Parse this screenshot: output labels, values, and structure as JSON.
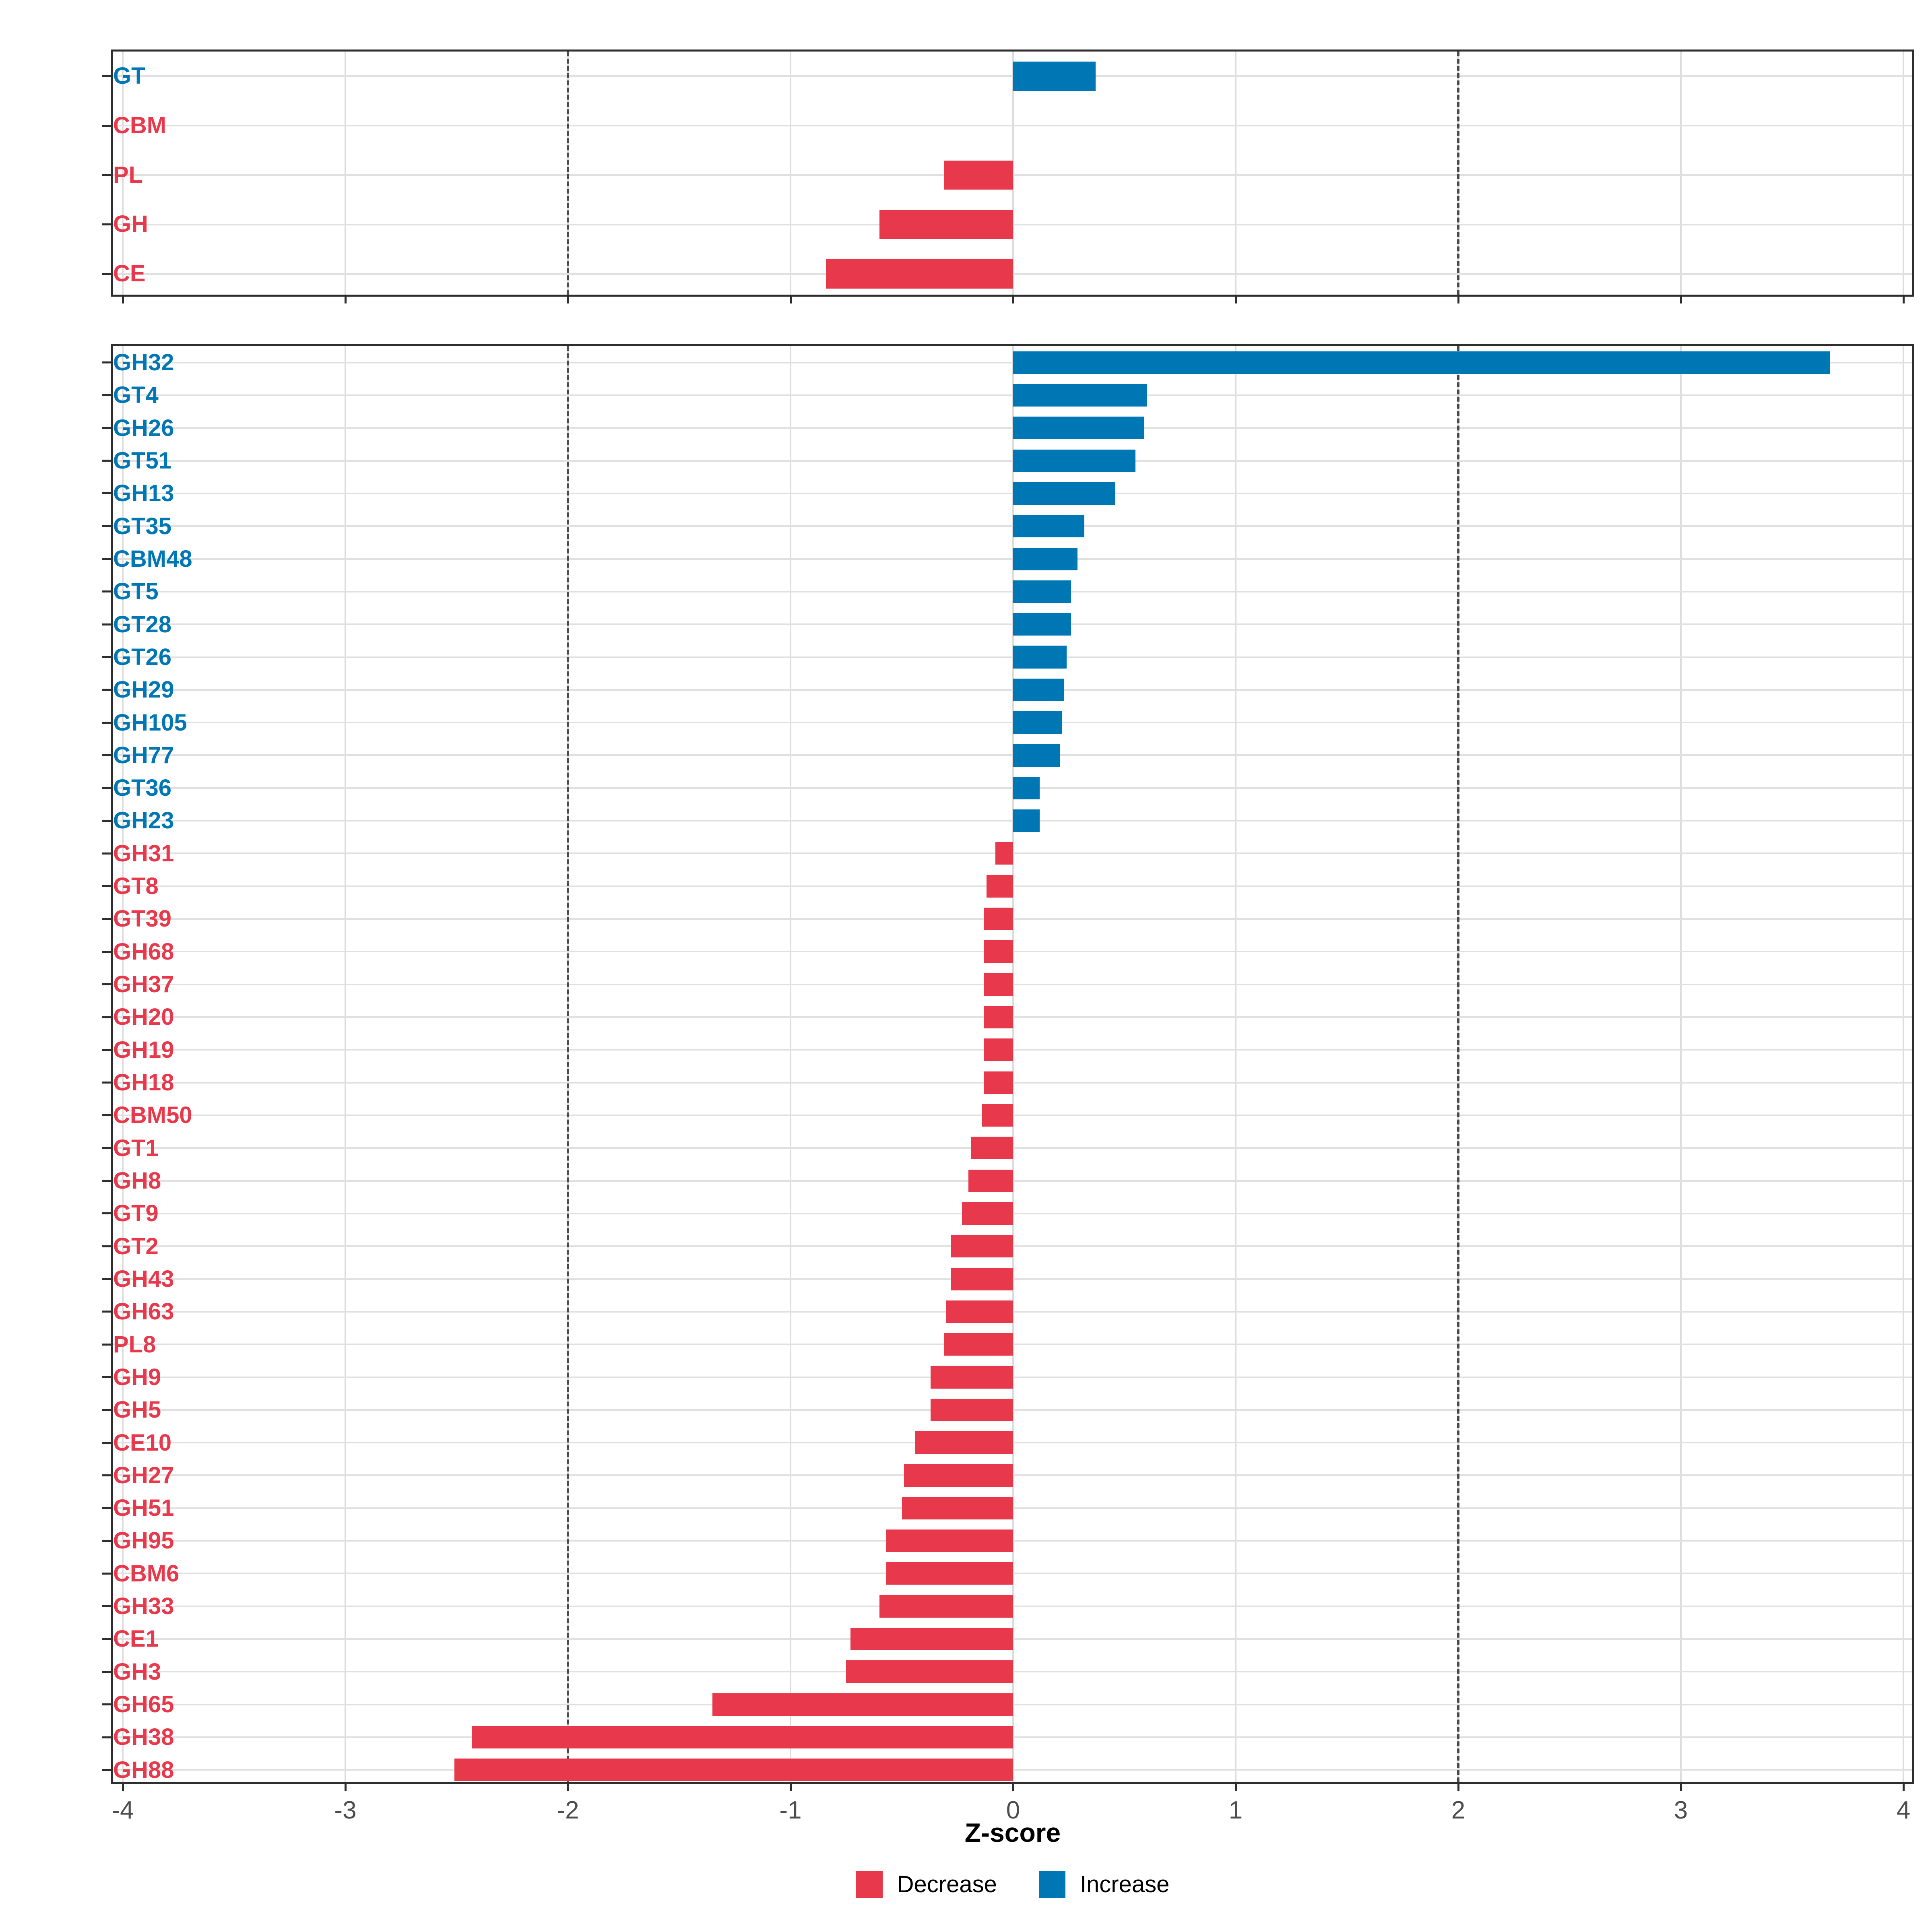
{
  "chart_data": {
    "type": "bar",
    "orientation": "horizontal",
    "title": "",
    "xlabel": "Z-score",
    "ylabel": "",
    "xlim": [
      -4,
      4
    ],
    "x_ticks": [
      -4,
      -3,
      -2,
      -1,
      0,
      1,
      2,
      3,
      4
    ],
    "reference_lines": [
      -2,
      2
    ],
    "grid": true,
    "legend_position": "bottom",
    "colors": {
      "increase": "#0077B5",
      "decrease": "#E8384B"
    },
    "legend": [
      {
        "label": "Decrease",
        "color": "#E8384B"
      },
      {
        "label": "Increase",
        "color": "#0077B5"
      }
    ],
    "panels": [
      {
        "name": "cazyme-class-panel",
        "rows": [
          {
            "label": "GT",
            "value": 0.37,
            "direction": "up"
          },
          {
            "label": "CBM",
            "value": 0.0,
            "direction": "down"
          },
          {
            "label": "PL",
            "value": -0.31,
            "direction": "down"
          },
          {
            "label": "GH",
            "value": -0.6,
            "direction": "down"
          },
          {
            "label": "CE",
            "value": -0.84,
            "direction": "down"
          }
        ]
      },
      {
        "name": "cazyme-family-panel",
        "rows": [
          {
            "label": "GH32",
            "value": 3.67,
            "direction": "up"
          },
          {
            "label": "GT4",
            "value": 0.6,
            "direction": "up"
          },
          {
            "label": "GH26",
            "value": 0.59,
            "direction": "up"
          },
          {
            "label": "GT51",
            "value": 0.55,
            "direction": "up"
          },
          {
            "label": "GH13",
            "value": 0.46,
            "direction": "up"
          },
          {
            "label": "GT35",
            "value": 0.32,
            "direction": "up"
          },
          {
            "label": "CBM48",
            "value": 0.29,
            "direction": "up"
          },
          {
            "label": "GT5",
            "value": 0.26,
            "direction": "up"
          },
          {
            "label": "GT28",
            "value": 0.26,
            "direction": "up"
          },
          {
            "label": "GT26",
            "value": 0.24,
            "direction": "up"
          },
          {
            "label": "GH29",
            "value": 0.23,
            "direction": "up"
          },
          {
            "label": "GH105",
            "value": 0.22,
            "direction": "up"
          },
          {
            "label": "GH77",
            "value": 0.21,
            "direction": "up"
          },
          {
            "label": "GT36",
            "value": 0.12,
            "direction": "up"
          },
          {
            "label": "GH23",
            "value": 0.12,
            "direction": "up"
          },
          {
            "label": "GH31",
            "value": -0.08,
            "direction": "down"
          },
          {
            "label": "GT8",
            "value": -0.12,
            "direction": "down"
          },
          {
            "label": "GT39",
            "value": -0.13,
            "direction": "down"
          },
          {
            "label": "GH68",
            "value": -0.13,
            "direction": "down"
          },
          {
            "label": "GH37",
            "value": -0.13,
            "direction": "down"
          },
          {
            "label": "GH20",
            "value": -0.13,
            "direction": "down"
          },
          {
            "label": "GH19",
            "value": -0.13,
            "direction": "down"
          },
          {
            "label": "GH18",
            "value": -0.13,
            "direction": "down"
          },
          {
            "label": "CBM50",
            "value": -0.14,
            "direction": "down"
          },
          {
            "label": "GT1",
            "value": -0.19,
            "direction": "down"
          },
          {
            "label": "GH8",
            "value": -0.2,
            "direction": "down"
          },
          {
            "label": "GT9",
            "value": -0.23,
            "direction": "down"
          },
          {
            "label": "GT2",
            "value": -0.28,
            "direction": "down"
          },
          {
            "label": "GH43",
            "value": -0.28,
            "direction": "down"
          },
          {
            "label": "GH63",
            "value": -0.3,
            "direction": "down"
          },
          {
            "label": "PL8",
            "value": -0.31,
            "direction": "down"
          },
          {
            "label": "GH9",
            "value": -0.37,
            "direction": "down"
          },
          {
            "label": "GH5",
            "value": -0.37,
            "direction": "down"
          },
          {
            "label": "CE10",
            "value": -0.44,
            "direction": "down"
          },
          {
            "label": "GH27",
            "value": -0.49,
            "direction": "down"
          },
          {
            "label": "GH51",
            "value": -0.5,
            "direction": "down"
          },
          {
            "label": "GH95",
            "value": -0.57,
            "direction": "down"
          },
          {
            "label": "CBM6",
            "value": -0.57,
            "direction": "down"
          },
          {
            "label": "GH33",
            "value": -0.6,
            "direction": "down"
          },
          {
            "label": "CE1",
            "value": -0.73,
            "direction": "down"
          },
          {
            "label": "GH3",
            "value": -0.75,
            "direction": "down"
          },
          {
            "label": "GH65",
            "value": -1.35,
            "direction": "down"
          },
          {
            "label": "GH38",
            "value": -2.43,
            "direction": "down"
          },
          {
            "label": "GH88",
            "value": -2.51,
            "direction": "down"
          }
        ]
      }
    ]
  }
}
